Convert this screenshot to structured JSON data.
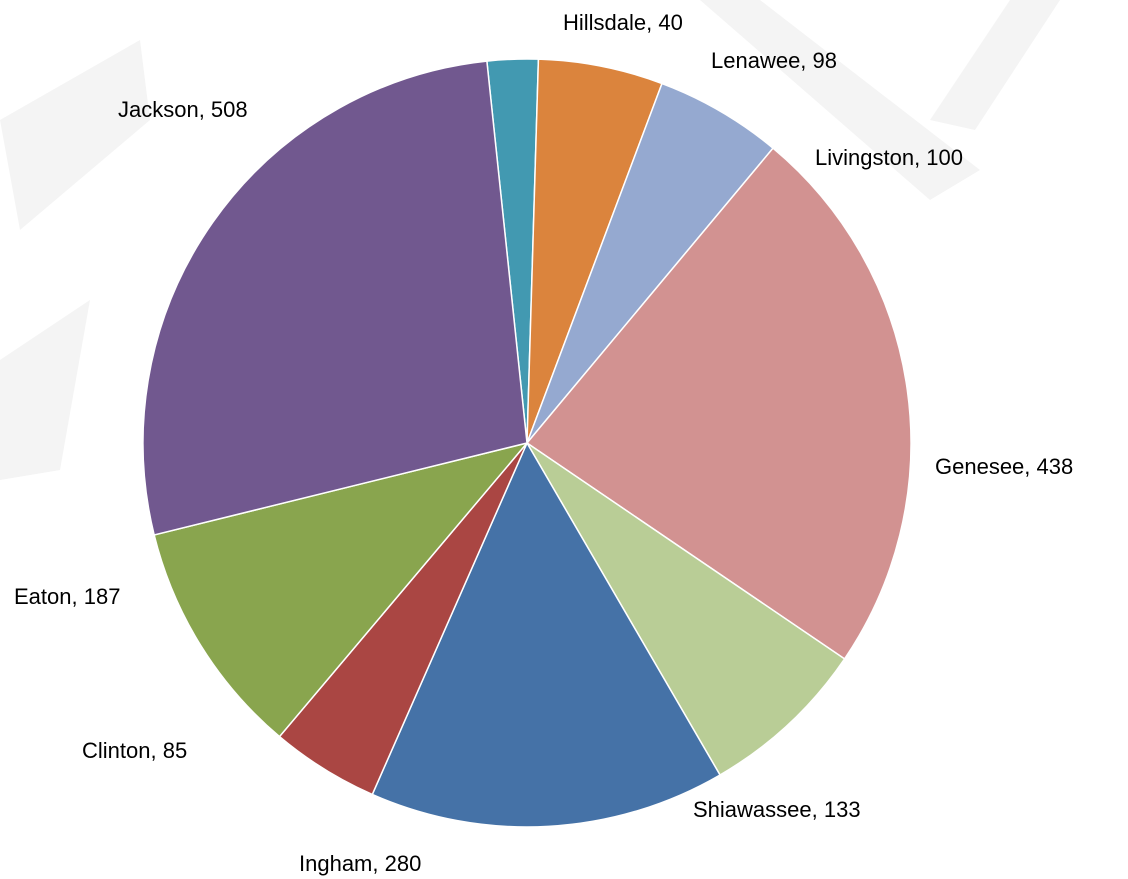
{
  "chart_data": {
    "type": "pie",
    "title": "",
    "slices": [
      {
        "label": "Hillsdale",
        "value": 40,
        "display": "Hillsdale, 40",
        "color": "#4299b1"
      },
      {
        "label": "Lenawee",
        "value": 98,
        "display": "Lenawee, 98",
        "color": "#db843d"
      },
      {
        "label": "Livingston",
        "value": 100,
        "display": "Livingston, 100",
        "color": "#95a9d0"
      },
      {
        "label": "Genesee",
        "value": 438,
        "display": "Genesee, 438",
        "color": "#d29291"
      },
      {
        "label": "Shiawassee",
        "value": 133,
        "display": "Shiawassee, 133",
        "color": "#b9cd96"
      },
      {
        "label": "Ingham",
        "value": 280,
        "display": "Ingham, 280",
        "color": "#4572a7"
      },
      {
        "label": "Clinton",
        "value": 85,
        "display": "Clinton, 85",
        "color": "#aa4643"
      },
      {
        "label": "Eaton",
        "value": 187,
        "display": "Eaton, 187",
        "color": "#89a54e"
      },
      {
        "label": "Jackson",
        "value": 508,
        "display": "Jackson, 508",
        "color": "#71588f"
      }
    ],
    "start_angle_deg": -6,
    "direction": "clockwise",
    "legend": "none",
    "data_labels": "outside"
  }
}
